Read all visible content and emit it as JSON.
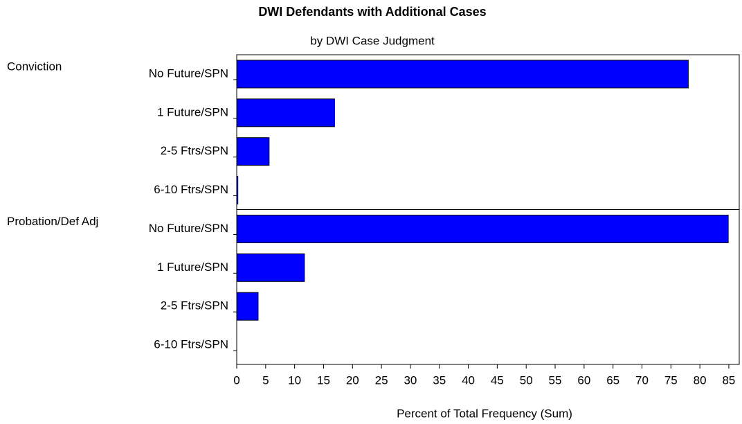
{
  "chart_data": {
    "type": "bar",
    "orientation": "horizontal",
    "title": "DWI Defendants with Additional Cases",
    "subtitle": "by DWI Case Judgment",
    "xlabel": "Percent of Total Frequency (Sum)",
    "color": "#0000ff",
    "groups": [
      {
        "name": "Conviction",
        "categories": [
          "No Future/SPN",
          "1 Future/SPN",
          "2-5 Ftrs/SPN",
          "6-10 Ftrs/SPN"
        ],
        "values": [
          78.0,
          16.9,
          5.6,
          0.2
        ]
      },
      {
        "name": "Probation/Def Adj",
        "categories": [
          "No Future/SPN",
          "1 Future/SPN",
          "2-5 Ftrs/SPN",
          "6-10 Ftrs/SPN"
        ],
        "values": [
          84.9,
          11.7,
          3.7,
          0
        ]
      }
    ],
    "xlim": [
      0,
      86.8
    ],
    "xticks": [
      0,
      5,
      10,
      15,
      20,
      25,
      30,
      35,
      40,
      45,
      50,
      55,
      60,
      65,
      70,
      75,
      80,
      85
    ]
  }
}
